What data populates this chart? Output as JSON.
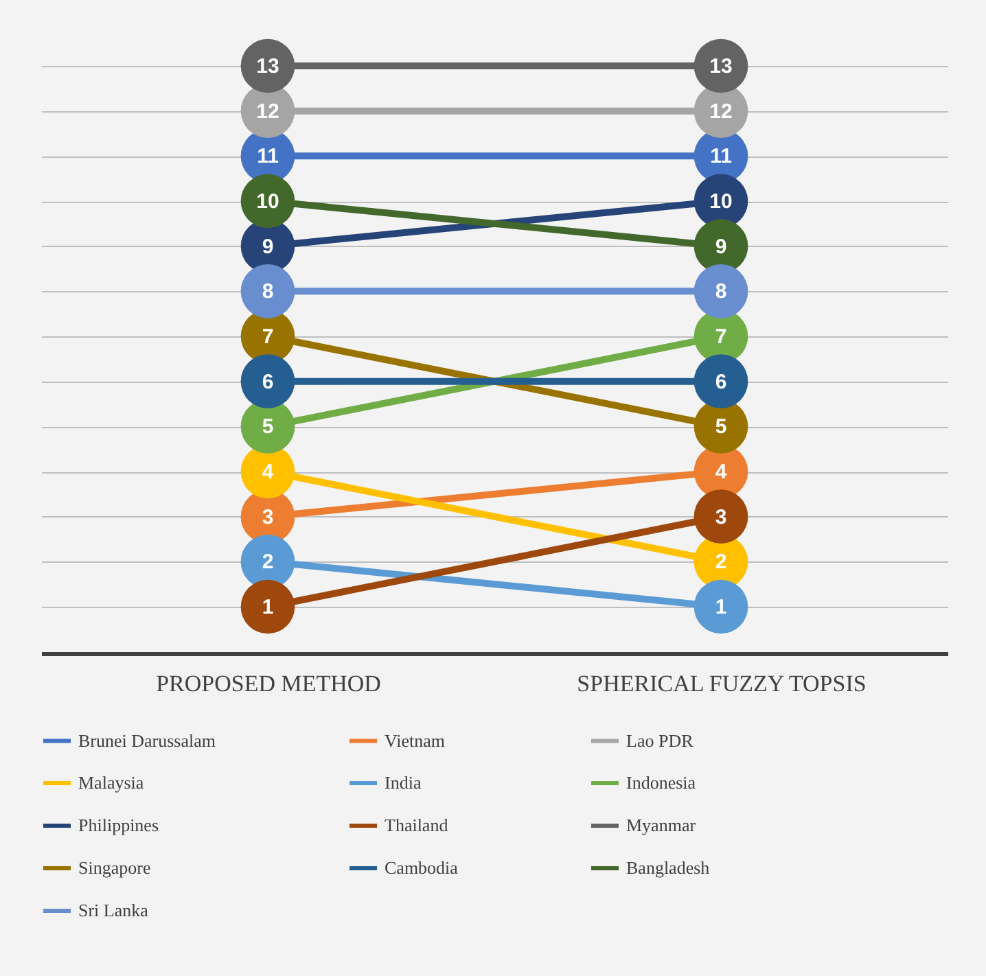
{
  "chart_data": {
    "type": "line",
    "categories": [
      "PROPOSED METHOD",
      "SPHERICAL FUZZY TOPSIS"
    ],
    "series": [
      {
        "name": "Brunei Darussalam",
        "color": "#4472c4",
        "values": [
          11,
          11
        ]
      },
      {
        "name": "Vietnam",
        "color": "#ed7d31",
        "values": [
          3,
          4
        ]
      },
      {
        "name": "Lao PDR",
        "color": "#a5a5a5",
        "values": [
          12,
          12
        ]
      },
      {
        "name": "Malaysia",
        "color": "#ffc000",
        "values": [
          4,
          2
        ]
      },
      {
        "name": "India",
        "color": "#5b9bd5",
        "values": [
          2,
          1
        ]
      },
      {
        "name": "Indonesia",
        "color": "#70ad47",
        "values": [
          5,
          7
        ]
      },
      {
        "name": "Philippines",
        "color": "#264478",
        "values": [
          9,
          10
        ]
      },
      {
        "name": "Thailand",
        "color": "#9e480e",
        "values": [
          1,
          3
        ]
      },
      {
        "name": "Myanmar",
        "color": "#636363",
        "values": [
          13,
          13
        ]
      },
      {
        "name": "Singapore",
        "color": "#997300",
        "values": [
          7,
          5
        ]
      },
      {
        "name": "Cambodia",
        "color": "#255e91",
        "values": [
          6,
          6
        ]
      },
      {
        "name": "Bangladesh",
        "color": "#43682b",
        "values": [
          10,
          9
        ]
      },
      {
        "name": "Sri Lanka",
        "color": "#698ed0",
        "values": [
          8,
          8
        ]
      }
    ],
    "yticks": [
      {
        "value": 1,
        "label": null
      },
      {
        "value": 2,
        "label": null
      },
      {
        "value": 3,
        "label": null
      },
      {
        "value": 4,
        "label": null
      },
      {
        "value": 5,
        "label": null
      },
      {
        "value": 6,
        "label": null
      },
      {
        "value": 7,
        "label": null
      },
      {
        "value": 8,
        "label": null
      },
      {
        "value": 9,
        "label": null
      },
      {
        "value": 10,
        "label": null
      },
      {
        "value": 11,
        "label": null
      },
      {
        "value": 12,
        "label": null
      },
      {
        "value": 13,
        "label": null
      }
    ],
    "tick_labels": "x",
    "grid": true,
    "legend": "bottom",
    "marker": "circle",
    "line_style": "solid",
    "data_labels": true
  }
}
